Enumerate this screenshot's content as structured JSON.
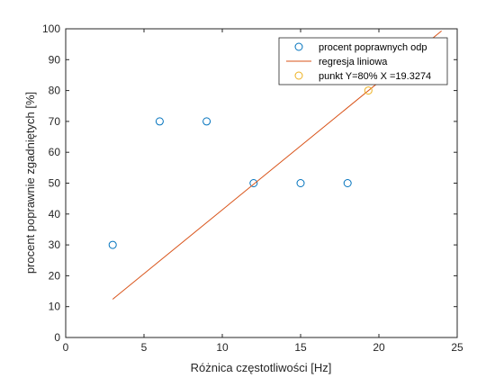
{
  "chart_data": {
    "type": "scatter",
    "xlabel": "Różnica częstotliwości [Hz]",
    "ylabel": "procent poprawnie zgadniętych [%]",
    "xlim": [
      0,
      25
    ],
    "ylim": [
      0,
      100
    ],
    "xticks": [
      0,
      5,
      10,
      15,
      20,
      25
    ],
    "yticks": [
      0,
      10,
      20,
      30,
      40,
      50,
      60,
      70,
      80,
      90,
      100
    ],
    "grid": false,
    "legend_position": "top-right",
    "series": [
      {
        "name": "procent poprawnych odp",
        "type": "scatter",
        "marker": "open-circle",
        "color": "#0072BD",
        "x": [
          3,
          6,
          9,
          12,
          15,
          18
        ],
        "y": [
          30,
          70,
          70,
          50,
          50,
          50
        ]
      },
      {
        "name": "regresja liniowa",
        "type": "line",
        "color": "#D95319",
        "x": [
          3,
          24
        ],
        "y": [
          12.4,
          99.3
        ]
      },
      {
        "name": "punkt Y=80% X =19.3274",
        "type": "scatter",
        "marker": "open-circle",
        "color": "#EDB120",
        "x": [
          19.3274
        ],
        "y": [
          80
        ]
      }
    ]
  }
}
